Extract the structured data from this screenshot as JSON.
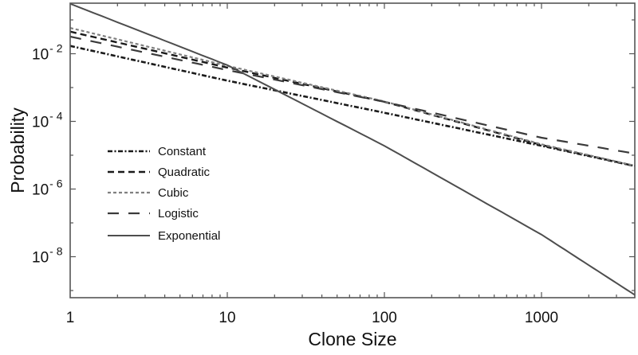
{
  "chart_data": {
    "type": "line",
    "title": "",
    "xlabel": "Clone Size",
    "ylabel": "Probability",
    "xscale": "log",
    "yscale": "log",
    "xlim": [
      1,
      4000
    ],
    "ylim": [
      6e-10,
      0.35
    ],
    "grid": false,
    "legend_position": "inside-left-center",
    "x_ticks": [
      {
        "value": 1,
        "label": "1"
      },
      {
        "value": 10,
        "label": "10"
      },
      {
        "value": 100,
        "label": "100"
      },
      {
        "value": 1000,
        "label": "1000"
      }
    ],
    "y_ticks": [
      {
        "exp": -2,
        "base": "10",
        "sup": "- 2"
      },
      {
        "exp": -4,
        "base": "10",
        "sup": "- 4"
      },
      {
        "exp": -6,
        "base": "10",
        "sup": "- 6"
      },
      {
        "exp": -8,
        "base": "10",
        "sup": "- 8"
      }
    ],
    "x": [
      1,
      10,
      100,
      1000,
      4000
    ],
    "series": [
      {
        "name": "Constant",
        "style": "dash-dot",
        "color": "#1a1a1a",
        "values": [
          0.017,
          0.0016,
          0.00018,
          1.9e-05,
          4.7e-06
        ]
      },
      {
        "name": "Quadratic",
        "style": "dashed",
        "color": "#1a1a1a",
        "values": [
          0.045,
          0.0039,
          0.00038,
          2e-05,
          4.7e-06
        ]
      },
      {
        "name": "Cubic",
        "style": "short-dotted",
        "color": "#808080",
        "values": [
          0.058,
          0.0044,
          0.00039,
          2.1e-05,
          4.8e-06
        ]
      },
      {
        "name": "Logistic",
        "style": "long-dashed",
        "color": "#3a3a3a",
        "values": [
          0.032,
          0.0033,
          0.00038,
          3.3e-05,
          1.1e-05
        ]
      },
      {
        "name": "Exponential",
        "style": "solid",
        "color": "#4d4d4d",
        "values": [
          0.3,
          0.0046,
          1.9e-05,
          4.5e-08,
          7e-10
        ]
      }
    ]
  }
}
